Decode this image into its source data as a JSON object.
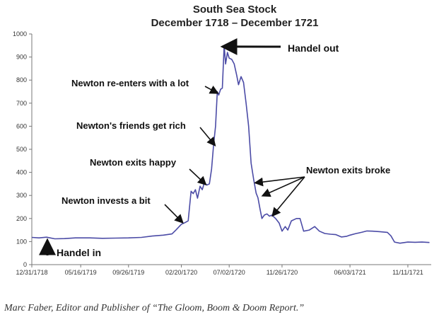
{
  "chart_data": {
    "type": "line",
    "title": "South Sea Stock",
    "subtitle": "December 1718 – December 1721",
    "xlabel": "",
    "ylabel": "",
    "ylim": [
      0,
      1000
    ],
    "yticks": [
      0,
      100,
      200,
      300,
      400,
      500,
      600,
      700,
      800,
      900,
      1000
    ],
    "x_tick_labels": [
      "12/31/1718",
      "05/16/1719",
      "09/26/1719",
      "02/20/1720",
      "07/02/1720",
      "11/26/1720",
      "06/03/1721",
      "11/11/1721"
    ],
    "x_tick_dates": [
      "1718-12-31",
      "1719-05-16",
      "1719-09-26",
      "1720-02-20",
      "1720-07-02",
      "1720-11-26",
      "1721-06-03",
      "1721-11-11"
    ],
    "xlim": [
      "1718-12-31",
      "1722-01-15"
    ],
    "grid": false,
    "line_color": "#4b4ba6",
    "series": [
      {
        "name": "",
        "points": [
          [
            "1718-12-31",
            118
          ],
          [
            "1719-01-20",
            116
          ],
          [
            "1719-02-10",
            119
          ],
          [
            "1719-03-05",
            112
          ],
          [
            "1719-04-01",
            113
          ],
          [
            "1719-05-01",
            116
          ],
          [
            "1719-06-10",
            116
          ],
          [
            "1719-07-15",
            114
          ],
          [
            "1719-08-20",
            115
          ],
          [
            "1719-09-26",
            116
          ],
          [
            "1719-11-01",
            118
          ],
          [
            "1719-12-01",
            124
          ],
          [
            "1720-01-01",
            128
          ],
          [
            "1720-01-25",
            133
          ],
          [
            "1720-02-05",
            150
          ],
          [
            "1720-02-20",
            175
          ],
          [
            "1720-03-01",
            182
          ],
          [
            "1720-03-10",
            190
          ],
          [
            "1720-03-18",
            318
          ],
          [
            "1720-03-24",
            308
          ],
          [
            "1720-03-30",
            325
          ],
          [
            "1720-04-05",
            288
          ],
          [
            "1720-04-12",
            340
          ],
          [
            "1720-04-18",
            325
          ],
          [
            "1720-04-24",
            355
          ],
          [
            "1720-05-01",
            345
          ],
          [
            "1720-05-08",
            350
          ],
          [
            "1720-05-14",
            415
          ],
          [
            "1720-05-20",
            525
          ],
          [
            "1720-05-25",
            600
          ],
          [
            "1720-05-30",
            750
          ],
          [
            "1720-06-03",
            735
          ],
          [
            "1720-06-08",
            760
          ],
          [
            "1720-06-13",
            765
          ],
          [
            "1720-06-18",
            950
          ],
          [
            "1720-06-22",
            870
          ],
          [
            "1720-06-27",
            920
          ],
          [
            "1720-07-02",
            895
          ],
          [
            "1720-07-09",
            890
          ],
          [
            "1720-07-16",
            870
          ],
          [
            "1720-07-23",
            820
          ],
          [
            "1720-07-28",
            780
          ],
          [
            "1720-08-04",
            815
          ],
          [
            "1720-08-11",
            790
          ],
          [
            "1720-08-18",
            700
          ],
          [
            "1720-08-25",
            600
          ],
          [
            "1720-09-01",
            440
          ],
          [
            "1720-09-08",
            370
          ],
          [
            "1720-09-15",
            310
          ],
          [
            "1720-09-20",
            290
          ],
          [
            "1720-09-26",
            240
          ],
          [
            "1720-10-01",
            200
          ],
          [
            "1720-10-08",
            215
          ],
          [
            "1720-10-15",
            220
          ],
          [
            "1720-10-22",
            210
          ],
          [
            "1720-10-29",
            215
          ],
          [
            "1720-11-08",
            200
          ],
          [
            "1720-11-18",
            180
          ],
          [
            "1720-11-26",
            145
          ],
          [
            "1720-12-05",
            165
          ],
          [
            "1720-12-12",
            150
          ],
          [
            "1720-12-22",
            190
          ],
          [
            "1721-01-05",
            200
          ],
          [
            "1721-01-15",
            200
          ],
          [
            "1721-01-25",
            145
          ],
          [
            "1721-02-10",
            150
          ],
          [
            "1721-02-25",
            165
          ],
          [
            "1721-03-10",
            145
          ],
          [
            "1721-03-25",
            135
          ],
          [
            "1721-04-10",
            132
          ],
          [
            "1721-04-25",
            130
          ],
          [
            "1721-05-10",
            120
          ],
          [
            "1721-05-25",
            123
          ],
          [
            "1721-06-03",
            128
          ],
          [
            "1721-06-20",
            135
          ],
          [
            "1721-07-05",
            140
          ],
          [
            "1721-07-20",
            146
          ],
          [
            "1721-08-05",
            145
          ],
          [
            "1721-08-25",
            143
          ],
          [
            "1721-09-15",
            140
          ],
          [
            "1721-09-25",
            125
          ],
          [
            "1721-10-05",
            98
          ],
          [
            "1721-10-20",
            93
          ],
          [
            "1721-11-11",
            98
          ],
          [
            "1721-12-01",
            97
          ],
          [
            "1721-12-20",
            98
          ],
          [
            "1722-01-10",
            96
          ]
        ]
      }
    ],
    "annotations": [
      {
        "text": "Handel in",
        "target": [
          "1719-01-08",
          112
        ]
      },
      {
        "text": "Newton invests a bit",
        "target": [
          "1720-02-22",
          185
        ]
      },
      {
        "text": "Newton exits happy",
        "target": [
          "1720-04-26",
          350
        ]
      },
      {
        "text": "Newton's friends get rich",
        "target": [
          "1720-05-22",
          520
        ]
      },
      {
        "text": "Newton re-enters with a lot",
        "target": [
          "1720-05-29",
          745
        ]
      },
      {
        "text": "Handel out",
        "target": [
          "1720-06-19",
          945
        ]
      },
      {
        "text": "Newton exits broke",
        "targets": [
          [
            "1720-09-15",
            355
          ],
          [
            "1720-10-05",
            300
          ],
          [
            "1720-11-01",
            215
          ]
        ]
      }
    ]
  },
  "caption": "Marc Faber, Editor and Publisher of “The Gloom, Boom & Doom Report.”"
}
